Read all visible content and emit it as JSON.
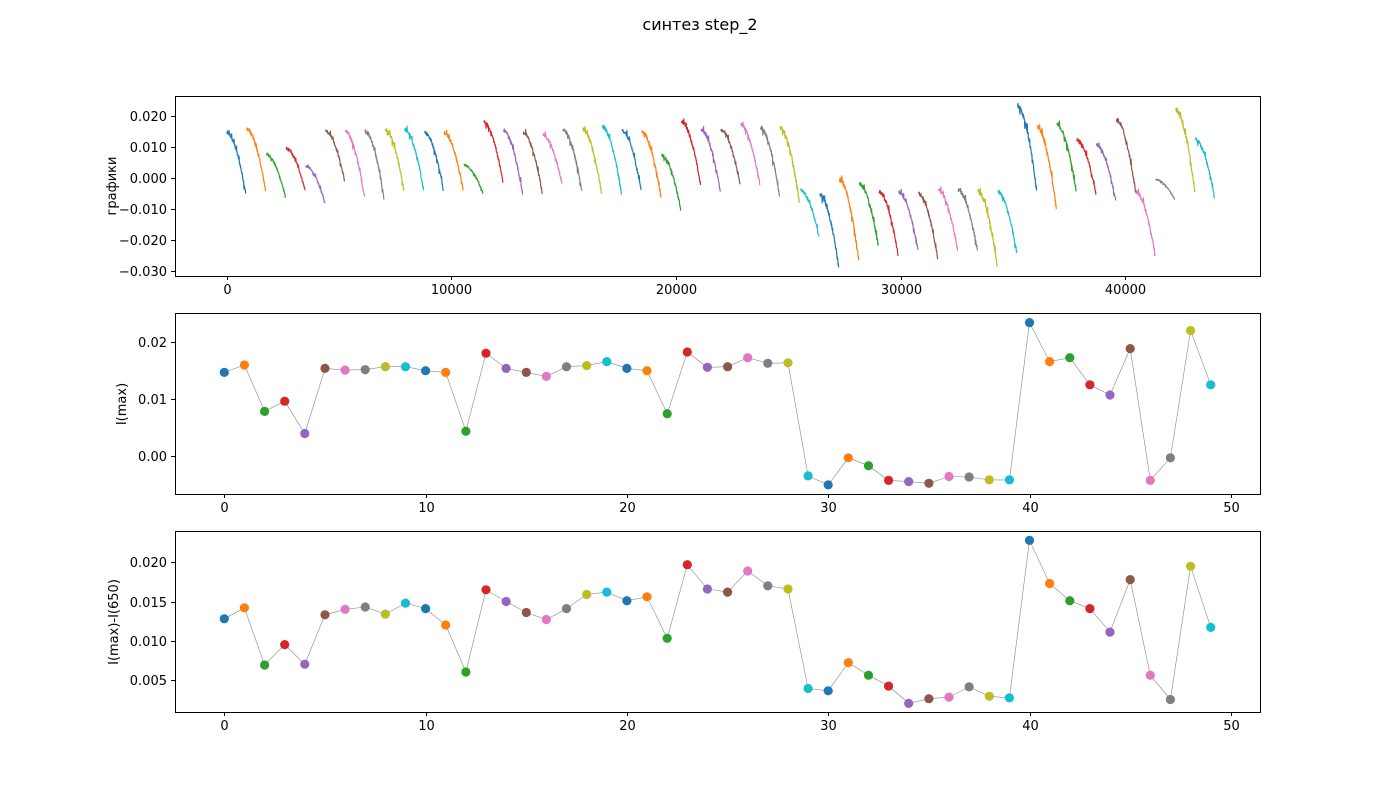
{
  "figure": {
    "title": "синтез step_2"
  },
  "palette": [
    "#1f77b4",
    "#ff7f0e",
    "#2ca02c",
    "#d62728",
    "#9467bd",
    "#8c564b",
    "#e377c2",
    "#7f7f7f",
    "#bcbd22",
    "#17becf"
  ],
  "chart_data": [
    {
      "type": "line",
      "ylabel": "графики",
      "xlabel": "",
      "xlim": [
        -2300,
        46000
      ],
      "ylim": [
        -0.0315,
        0.0265
      ],
      "xticks": [
        0,
        10000,
        20000,
        30000,
        40000
      ],
      "yticks": [
        -0.03,
        -0.02,
        -0.01,
        0.0,
        0.01,
        0.02
      ],
      "segment_length": 880,
      "segments": [
        {
          "start": 0.0147,
          "end": -0.005
        },
        {
          "start": 0.016,
          "end": -0.004
        },
        {
          "start": 0.0078,
          "end": -0.006
        },
        {
          "start": 0.0096,
          "end": -0.004
        },
        {
          "start": 0.0039,
          "end": -0.008
        },
        {
          "start": 0.0154,
          "end": -0.001
        },
        {
          "start": 0.0151,
          "end": -0.006
        },
        {
          "start": 0.0152,
          "end": -0.007
        },
        {
          "start": 0.0157,
          "end": -0.004
        },
        {
          "start": 0.0157,
          "end": -0.004
        },
        {
          "start": 0.015,
          "end": -0.004
        },
        {
          "start": 0.0147,
          "end": -0.004
        },
        {
          "start": 0.0043,
          "end": -0.005
        },
        {
          "start": 0.0181,
          "end": -0.001
        },
        {
          "start": 0.0154,
          "end": -0.005
        },
        {
          "start": 0.0147,
          "end": -0.005
        },
        {
          "start": 0.014,
          "end": -0.002
        },
        {
          "start": 0.0157,
          "end": -0.004
        },
        {
          "start": 0.0159,
          "end": -0.005
        },
        {
          "start": 0.0166,
          "end": -0.005
        },
        {
          "start": 0.0154,
          "end": -0.004
        },
        {
          "start": 0.015,
          "end": -0.006
        },
        {
          "start": 0.0074,
          "end": -0.01
        },
        {
          "start": 0.0183,
          "end": -0.002
        },
        {
          "start": 0.0156,
          "end": -0.004
        },
        {
          "start": 0.0157,
          "end": -0.002
        },
        {
          "start": 0.0173,
          "end": -0.002
        },
        {
          "start": 0.0163,
          "end": -0.006
        },
        {
          "start": 0.0164,
          "end": -0.008
        },
        {
          "start": -0.0036,
          "end": -0.019
        },
        {
          "start": -0.0052,
          "end": -0.029
        },
        {
          "start": -0.0004,
          "end": -0.026
        },
        {
          "start": -0.0018,
          "end": -0.022
        },
        {
          "start": -0.0044,
          "end": -0.025
        },
        {
          "start": -0.0046,
          "end": -0.023
        },
        {
          "start": -0.0049,
          "end": -0.026
        },
        {
          "start": -0.0037,
          "end": -0.023
        },
        {
          "start": -0.0038,
          "end": -0.023
        },
        {
          "start": -0.0043,
          "end": -0.028
        },
        {
          "start": -0.0043,
          "end": -0.024
        },
        {
          "start": 0.0235,
          "end": -0.004
        },
        {
          "start": 0.0166,
          "end": -0.01
        },
        {
          "start": 0.0173,
          "end": -0.004
        },
        {
          "start": 0.0125,
          "end": -0.005
        },
        {
          "start": 0.0107,
          "end": -0.007
        },
        {
          "start": 0.0189,
          "end": -0.004
        },
        {
          "start": -0.0044,
          "end": -0.025
        },
        {
          "start": -0.0004,
          "end": -0.007
        },
        {
          "start": 0.0221,
          "end": -0.004
        },
        {
          "start": 0.0125,
          "end": -0.006
        }
      ]
    },
    {
      "type": "scatter",
      "ylabel": "I(max)",
      "xlabel": "",
      "xlim": [
        -2.45,
        51.45
      ],
      "ylim": [
        -0.0068,
        0.0252
      ],
      "xticks": [
        0,
        10,
        20,
        30,
        40,
        50
      ],
      "yticks": [
        0.0,
        0.01,
        0.02
      ],
      "x": [
        0,
        1,
        2,
        3,
        4,
        5,
        6,
        7,
        8,
        9,
        10,
        11,
        12,
        13,
        14,
        15,
        16,
        17,
        18,
        19,
        20,
        21,
        22,
        23,
        24,
        25,
        26,
        27,
        28,
        29,
        30,
        31,
        32,
        33,
        34,
        35,
        36,
        37,
        38,
        39,
        40,
        41,
        42,
        43,
        44,
        45,
        46,
        47,
        48,
        49
      ],
      "y": [
        0.0147,
        0.016,
        0.0078,
        0.0096,
        0.0039,
        0.0154,
        0.0151,
        0.0152,
        0.0157,
        0.0157,
        0.015,
        0.0147,
        0.0043,
        0.0181,
        0.0154,
        0.0147,
        0.014,
        0.0157,
        0.0159,
        0.0166,
        0.0154,
        0.015,
        0.0074,
        0.0183,
        0.0156,
        0.0157,
        0.0173,
        0.0163,
        0.0164,
        -0.0036,
        -0.0052,
        -0.0004,
        -0.0018,
        -0.0044,
        -0.0046,
        -0.0049,
        -0.0037,
        -0.0038,
        -0.0043,
        -0.0043,
        0.0235,
        0.0166,
        0.0173,
        0.0125,
        0.0107,
        0.0189,
        -0.0044,
        -0.0004,
        0.0221,
        0.0125
      ]
    },
    {
      "type": "scatter",
      "ylabel": "I(max)-I(650)",
      "xlabel": "",
      "xlim": [
        -2.45,
        51.45
      ],
      "ylim": [
        0.0009,
        0.024
      ],
      "xticks": [
        0,
        10,
        20,
        30,
        40,
        50
      ],
      "yticks": [
        0.005,
        0.01,
        0.015,
        0.02
      ],
      "x": [
        0,
        1,
        2,
        3,
        4,
        5,
        6,
        7,
        8,
        9,
        10,
        11,
        12,
        13,
        14,
        15,
        16,
        17,
        18,
        19,
        20,
        21,
        22,
        23,
        24,
        25,
        26,
        27,
        28,
        29,
        30,
        31,
        32,
        33,
        34,
        35,
        36,
        37,
        38,
        39,
        40,
        41,
        42,
        43,
        44,
        45,
        46,
        47,
        48,
        49
      ],
      "y": [
        0.0128,
        0.0142,
        0.0069,
        0.0095,
        0.007,
        0.0133,
        0.014,
        0.0143,
        0.0134,
        0.0148,
        0.0141,
        0.012,
        0.006,
        0.0165,
        0.015,
        0.0136,
        0.0127,
        0.0141,
        0.0159,
        0.0162,
        0.0151,
        0.0156,
        0.0103,
        0.0197,
        0.0166,
        0.0162,
        0.0189,
        0.017,
        0.0166,
        0.0039,
        0.0036,
        0.0072,
        0.0056,
        0.0042,
        0.002,
        0.0026,
        0.0028,
        0.0041,
        0.0029,
        0.0027,
        0.0228,
        0.0173,
        0.0151,
        0.0141,
        0.0111,
        0.0178,
        0.0056,
        0.0025,
        0.0195,
        0.0117
      ]
    }
  ]
}
